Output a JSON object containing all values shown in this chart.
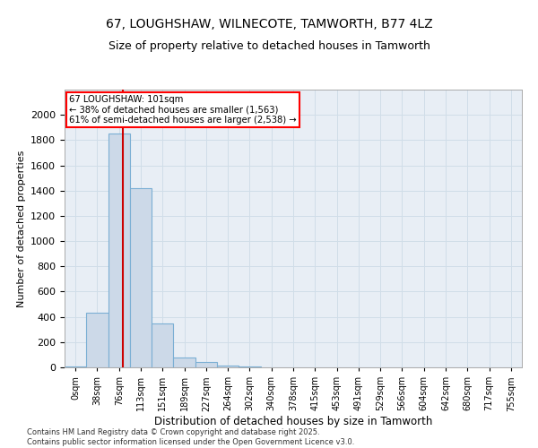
{
  "title_line1": "67, LOUGHSHAW, WILNECOTE, TAMWORTH, B77 4LZ",
  "title_line2": "Size of property relative to detached houses in Tamworth",
  "xlabel": "Distribution of detached houses by size in Tamworth",
  "ylabel": "Number of detached properties",
  "bar_categories": [
    "0sqm",
    "38sqm",
    "76sqm",
    "113sqm",
    "151sqm",
    "189sqm",
    "227sqm",
    "264sqm",
    "302sqm",
    "340sqm",
    "378sqm",
    "415sqm",
    "453sqm",
    "491sqm",
    "529sqm",
    "566sqm",
    "604sqm",
    "642sqm",
    "680sqm",
    "717sqm",
    "755sqm"
  ],
  "bar_values": [
    8,
    430,
    1850,
    1420,
    350,
    80,
    40,
    12,
    5,
    0,
    0,
    0,
    0,
    0,
    0,
    0,
    0,
    0,
    0,
    0,
    0
  ],
  "bar_color": "#ccd9e8",
  "bar_edge_color": "#7bafd4",
  "ylim": [
    0,
    2200
  ],
  "yticks": [
    0,
    200,
    400,
    600,
    800,
    1000,
    1200,
    1400,
    1600,
    1800,
    2000
  ],
  "annotation_line1": "67 LOUGHSHAW: 101sqm",
  "annotation_line2": "← 38% of detached houses are smaller (1,563)",
  "annotation_line3": "61% of semi-detached houses are larger (2,538) →",
  "red_line_x": 2.68,
  "vline_color": "#cc0000",
  "grid_color": "#d0dde8",
  "bg_color": "#e8eef5",
  "footer_line1": "Contains HM Land Registry data © Crown copyright and database right 2025.",
  "footer_line2": "Contains public sector information licensed under the Open Government Licence v3.0."
}
